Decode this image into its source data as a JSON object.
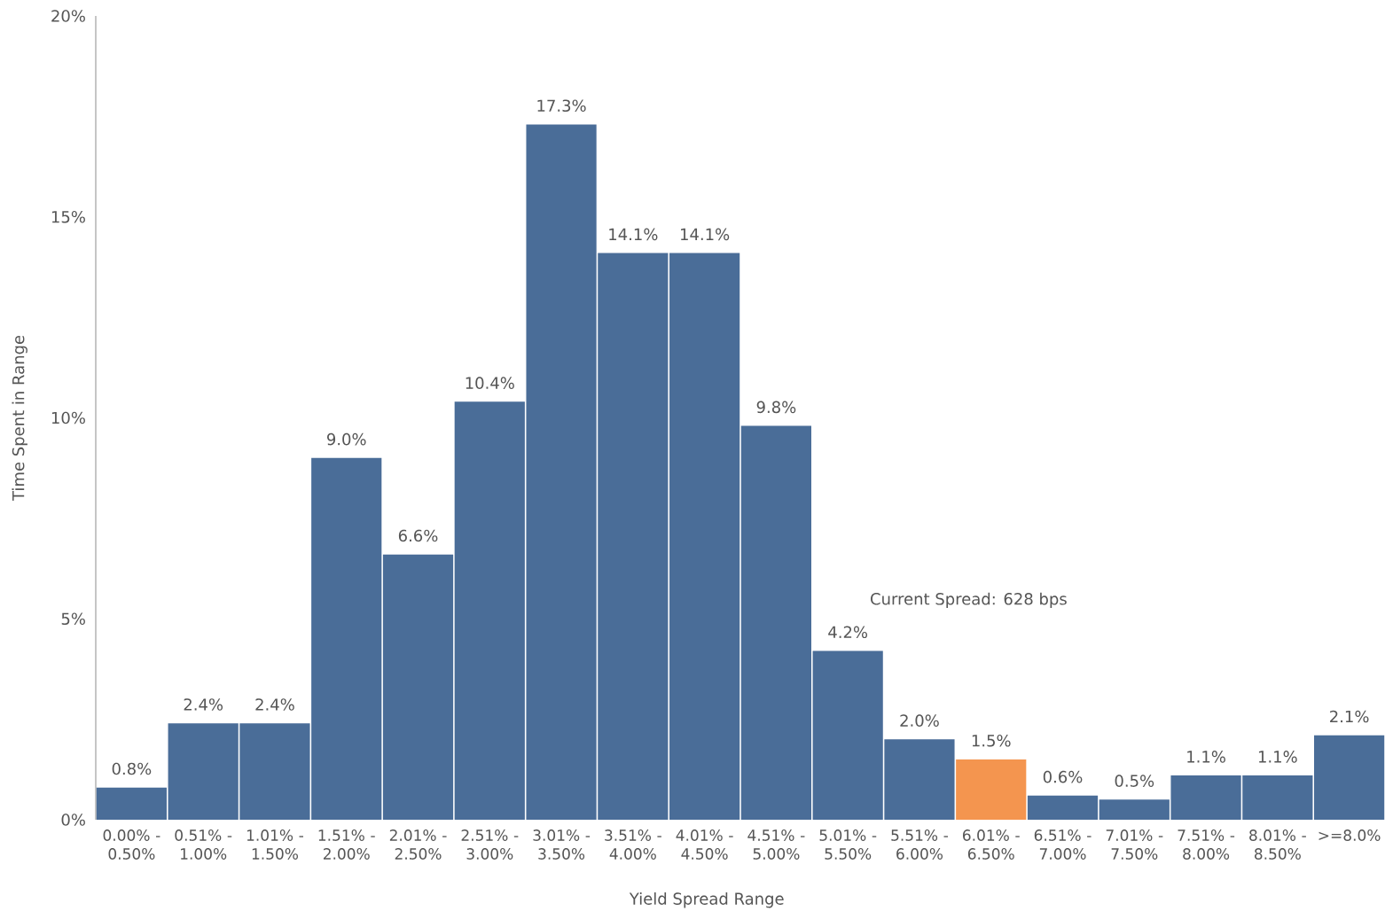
{
  "chart_data": {
    "type": "bar",
    "xlabel": "Yield Spread Range",
    "ylabel": "Time Spent in Range",
    "categories": [
      "0.00% - 0.50%",
      "0.51% - 1.00%",
      "1.01% - 1.50%",
      "1.51% - 2.00%",
      "2.01% - 2.50%",
      "2.51% - 3.00%",
      "3.01% - 3.50%",
      "3.51% - 4.00%",
      "4.01% - 4.50%",
      "4.51% - 5.00%",
      "5.01% - 5.50%",
      "5.51% - 6.00%",
      "6.01% - 6.50%",
      "6.51% - 7.00%",
      "7.01% - 7.50%",
      "7.51% - 8.00%",
      "8.01% - 8.50%",
      ">=8.0%"
    ],
    "values": [
      0.8,
      2.4,
      2.4,
      9.0,
      6.6,
      10.4,
      17.3,
      14.1,
      14.1,
      9.8,
      4.2,
      2.0,
      1.5,
      0.6,
      0.5,
      1.1,
      1.1,
      2.1
    ],
    "value_labels": [
      "0.8%",
      "2.4%",
      "2.4%",
      "9.0%",
      "6.6%",
      "10.4%",
      "17.3%",
      "14.1%",
      "14.1%",
      "9.8%",
      "4.2%",
      "2.0%",
      "1.5%",
      "0.6%",
      "0.5%",
      "1.1%",
      "1.1%",
      "2.1%"
    ],
    "colors": [
      "#4a6d98",
      "#4a6d98",
      "#4a6d98",
      "#4a6d98",
      "#4a6d98",
      "#4a6d98",
      "#4a6d98",
      "#4a6d98",
      "#4a6d98",
      "#4a6d98",
      "#4a6d98",
      "#4a6d98",
      "#f4954f",
      "#4a6d98",
      "#4a6d98",
      "#4a6d98",
      "#4a6d98",
      "#4a6d98"
    ],
    "ylim": [
      0,
      20
    ],
    "yticks": [
      {
        "value": 0,
        "label": "0%"
      },
      {
        "value": 5,
        "label": "5%"
      },
      {
        "value": 10,
        "label": "10%"
      },
      {
        "value": 15,
        "label": "15%"
      },
      {
        "value": 20,
        "label": "20%"
      }
    ],
    "annotations": [
      "Current Spread: 628 bps"
    ]
  }
}
